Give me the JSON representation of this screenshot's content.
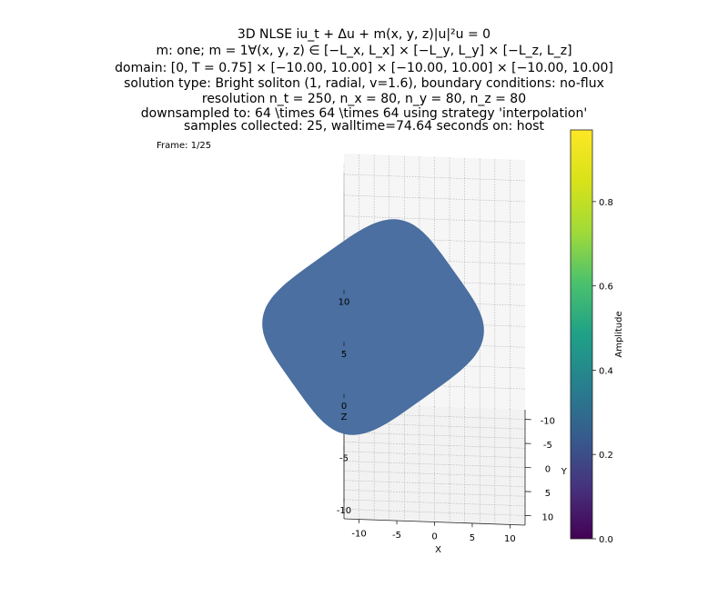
{
  "title_lines": [
    "3D NLSE iu_t + Δu + m(x, y, z)|u|²u = 0",
    "m: one; m = 1∀(x, y, z) ∈ [−L_x, L_x] × [−L_y, L_y] × [−L_z, L_z]",
    "domain: [0, T = 0.75] × [−10.00, 10.00] × [−10.00, 10.00] × [−10.00, 10.00]",
    "solution type: Bright soliton (1, radial, v=1.6), boundary conditions: no-flux",
    "resolution n_t = 250, n_x = 80, n_y = 80, n_z = 80",
    "downsampled to: 64 \\times 64 \\times 64 using strategy 'interpolation'",
    "samples collected: 25, walltime=74.64 seconds on: host"
  ],
  "frame_label": "Frame: 1/25",
  "chart_data": {
    "type": "surface3d",
    "axes": {
      "x": {
        "label": "X",
        "ticks": [
          -10,
          -5,
          0,
          5,
          10
        ]
      },
      "y": {
        "label": "Y",
        "ticks": [
          -10,
          -5,
          0,
          5,
          10
        ]
      },
      "z": {
        "label": "Z",
        "ticks": [
          -10,
          -5,
          0,
          5,
          10
        ]
      }
    },
    "xlim": [
      -12,
      12
    ],
    "ylim": [
      -12,
      12
    ],
    "zlim": [
      -12,
      12
    ],
    "isosurface_color": "#4a6fa0",
    "grid": true,
    "colorbar": {
      "label": "Amplitude",
      "range": [
        0.0,
        0.97
      ],
      "ticks": [
        0.0,
        0.2,
        0.4,
        0.6,
        0.8
      ],
      "colormap": "viridis"
    }
  }
}
